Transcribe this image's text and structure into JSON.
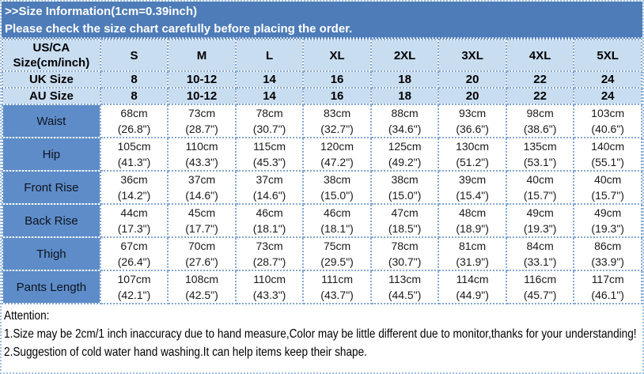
{
  "banner": {
    "line1": ">>Size Information(1cm=0.39inch)",
    "line2": "Please check the size chart carefully before placing the order."
  },
  "table": {
    "corner_header": "US/CA Size(cm/inch)",
    "size_columns": [
      "S",
      "M",
      "L",
      "XL",
      "2XL",
      "3XL",
      "4XL",
      "5XL"
    ],
    "uk_row": {
      "label": "UK Size",
      "values": [
        "8",
        "10-12",
        "14",
        "16",
        "18",
        "20",
        "22",
        "24"
      ]
    },
    "au_row": {
      "label": "AU Size",
      "values": [
        "8",
        "10-12",
        "14",
        "16",
        "18",
        "20",
        "22",
        "24"
      ]
    },
    "rows": [
      {
        "label": "Waist",
        "cm": [
          "68cm",
          "73cm",
          "78cm",
          "83cm",
          "88cm",
          "93cm",
          "98cm",
          "103cm"
        ],
        "inch": [
          "(26.8\")",
          "(28.7\")",
          "(30.7\")",
          "(32.7\")",
          "(34.6\")",
          "(36.6\")",
          "(38.6\")",
          "(40.6\")"
        ]
      },
      {
        "label": "Hip",
        "cm": [
          "105cm",
          "110cm",
          "115cm",
          "120cm",
          "125cm",
          "130cm",
          "135cm",
          "140cm"
        ],
        "inch": [
          "(41.3\")",
          "(43.3\")",
          "(45.3\")",
          "(47.2\")",
          "(49.2\")",
          "(51.2\")",
          "(53.1\")",
          "(55.1\")"
        ]
      },
      {
        "label": "Front Rise",
        "cm": [
          "36cm",
          "37cm",
          "37cm",
          "38cm",
          "38cm",
          "39cm",
          "40cm",
          "40cm"
        ],
        "inch": [
          "(14.2\")",
          "(14.6\")",
          "(14.6\")",
          "(15.0\")",
          "(15.0\")",
          "(15.4\")",
          "(15.7\")",
          "(15.7\")"
        ]
      },
      {
        "label": "Back Rise",
        "cm": [
          "44cm",
          "45cm",
          "46cm",
          "46cm",
          "47cm",
          "48cm",
          "49cm",
          "49cm"
        ],
        "inch": [
          "(17.3\")",
          "(17.7\")",
          "(18.1\")",
          "(18.1\")",
          "(18.5\")",
          "(18.9\")",
          "(19.3\")",
          "(19.3\")"
        ]
      },
      {
        "label": "Thigh",
        "cm": [
          "67cm",
          "70cm",
          "73cm",
          "75cm",
          "78cm",
          "81cm",
          "84cm",
          "86cm"
        ],
        "inch": [
          "(26.4\")",
          "(27.6\")",
          "(28.7\")",
          "(29.5\")",
          "(30.7\")",
          "(31.9\")",
          "(33.1\")",
          "(33.9\")"
        ]
      },
      {
        "label": "Pants Length",
        "cm": [
          "107cm",
          "108cm",
          "110cm",
          "111cm",
          "113cm",
          "114cm",
          "116cm",
          "117cm"
        ],
        "inch": [
          "(42.1\")",
          "(42.5\")",
          "(43.3\")",
          "(43.7\")",
          "(44.5\")",
          "(44.9\")",
          "(45.7\")",
          "(46.1\")"
        ]
      }
    ]
  },
  "attention": {
    "title": "Attention:",
    "note1": "1.Size may be 2cm/1 inch inaccuracy due to hand measure,Color may be little different due to monitor,thanks for your understanding!",
    "note2": "2.Suggestion of cold water hand washing.It can help items keep their shape."
  },
  "colors": {
    "banner_blue": "#4e7cb8",
    "header_light_blue": "#c9ddf1",
    "row_label_blue": "#5d8cc9",
    "grid_dotted_blue": "#84a7d4",
    "banner_text": "#ffffff",
    "body_text": "#1a1a1a"
  }
}
